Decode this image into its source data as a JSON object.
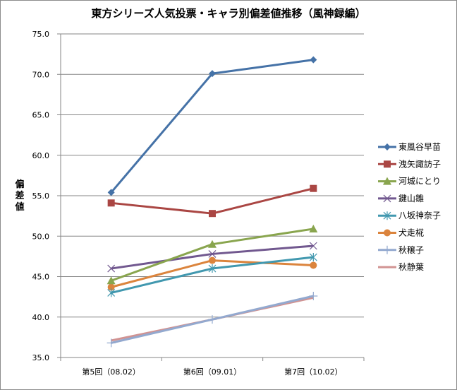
{
  "chart_data": {
    "type": "line",
    "title": "東方シリーズ人気投票・キャラ別偏差値推移（風神録編）",
    "xlabel": "",
    "ylabel": "偏差値",
    "categories": [
      "第5回（08.02）",
      "第6回（09.01）",
      "第7回（10.02）"
    ],
    "ylim": [
      35.0,
      75.0
    ],
    "yticks": [
      "35.0",
      "40.0",
      "45.0",
      "50.0",
      "55.0",
      "60.0",
      "65.0",
      "70.0",
      "75.0"
    ],
    "grid": true,
    "legend_position": "right",
    "series": [
      {
        "name": "東風谷早苗",
        "values": [
          55.4,
          70.1,
          71.8
        ],
        "color": "#4572a7",
        "marker": "diamond"
      },
      {
        "name": "洩矢諏訪子",
        "values": [
          54.1,
          52.8,
          55.9
        ],
        "color": "#aa4643",
        "marker": "square"
      },
      {
        "name": "河城にとり",
        "values": [
          44.5,
          49.0,
          50.9
        ],
        "color": "#89a54e",
        "marker": "triangle"
      },
      {
        "name": "鍵山雛",
        "values": [
          46.0,
          47.8,
          48.8
        ],
        "color": "#71588f",
        "marker": "x"
      },
      {
        "name": "八坂神奈子",
        "values": [
          43.0,
          46.0,
          47.4
        ],
        "color": "#4198af",
        "marker": "star"
      },
      {
        "name": "犬走椛",
        "values": [
          43.7,
          47.0,
          46.4
        ],
        "color": "#db843d",
        "marker": "circle"
      },
      {
        "name": "秋穣子",
        "values": [
          36.8,
          39.7,
          42.6
        ],
        "color": "#93a9cf",
        "marker": "plus"
      },
      {
        "name": "秋静葉",
        "values": [
          37.1,
          39.7,
          42.4
        ],
        "color": "#d19392",
        "marker": "none"
      }
    ]
  }
}
